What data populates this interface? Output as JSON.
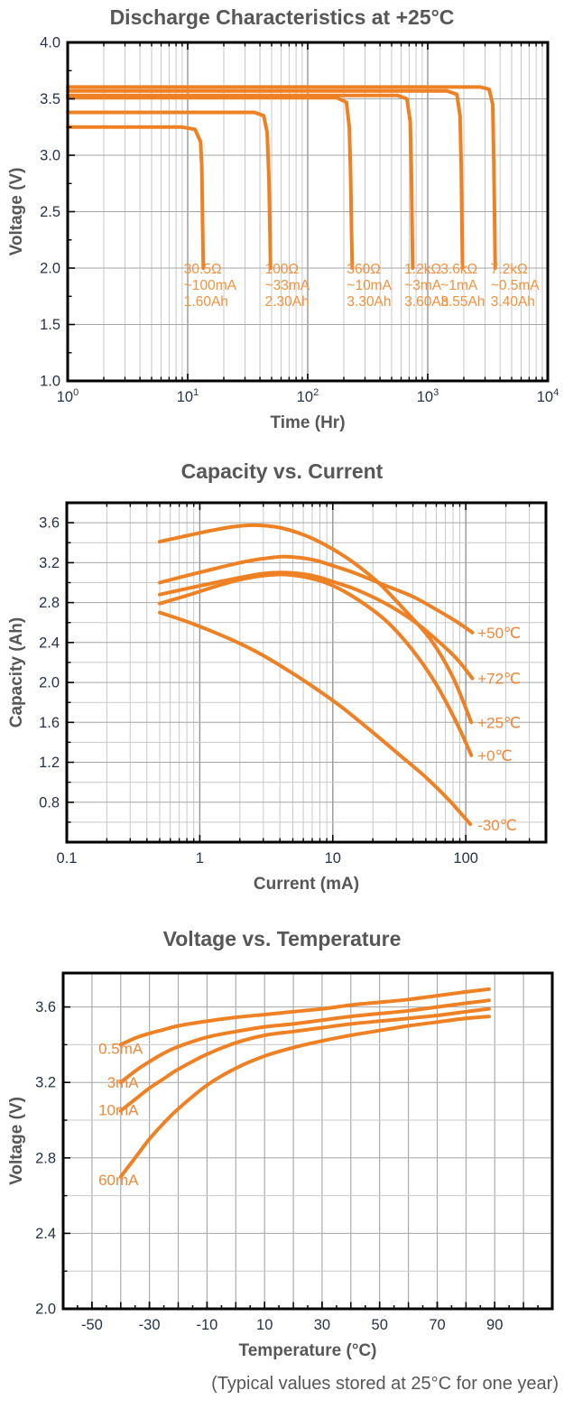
{
  "caption": "(Typical values stored at 25°C for one year)",
  "colors": {
    "curve": "#EF8125",
    "annotation": "#F2913D",
    "series_label": "#F0883A",
    "title_gray": "#575757",
    "tick": "#243447",
    "axis": "#000000",
    "grid_major": "#8f8f8f",
    "grid_mid": "#a6a6a6",
    "grid_minor": "#c9c9c9"
  },
  "chart_data": [
    {
      "type": "line",
      "title": "Discharge Characteristics at +25°C",
      "xlabel": "Time (Hr)",
      "ylabel": "Voltage (V)",
      "xscale": "log",
      "xlim": [
        1,
        10000
      ],
      "ylim": [
        1.0,
        4.0
      ],
      "smooth": false,
      "xticks": [
        {
          "v": 1,
          "exp": "0"
        },
        {
          "v": 10,
          "exp": "1"
        },
        {
          "v": 100,
          "exp": "2"
        },
        {
          "v": 1000,
          "exp": "3"
        },
        {
          "v": 10000,
          "exp": "4"
        }
      ],
      "yticks": [
        1.0,
        1.5,
        2.0,
        2.5,
        3.0,
        3.5,
        4.0
      ],
      "y_minor_step": 0.25,
      "y_grid_step": 0.5,
      "legend_position": "none",
      "grid": "on",
      "series": [
        {
          "name": "30.5Ω ~100mA 1.60Ah",
          "points": [
            [
              1,
              3.25
            ],
            [
              9,
              3.25
            ],
            [
              11.5,
              3.23
            ],
            [
              12.8,
              3.12
            ],
            [
              13.1,
              2.9
            ],
            [
              13.3,
              2.4
            ],
            [
              13.5,
              2.0
            ]
          ]
        },
        {
          "name": "100Ω ~33mA 2.30Ah",
          "points": [
            [
              1,
              3.38
            ],
            [
              36,
              3.38
            ],
            [
              43,
              3.35
            ],
            [
              46,
              3.2
            ],
            [
              47.5,
              2.8
            ],
            [
              48.5,
              2.3
            ],
            [
              49,
              2.0
            ]
          ]
        },
        {
          "name": "360Ω ~10mA 3.30Ah",
          "points": [
            [
              1,
              3.51
            ],
            [
              175,
              3.51
            ],
            [
              210,
              3.47
            ],
            [
              222,
              3.25
            ],
            [
              228,
              2.8
            ],
            [
              232,
              2.3
            ],
            [
              235,
              2.0
            ]
          ]
        },
        {
          "name": "1.2kΩ ~3mA 3.60Ah",
          "points": [
            [
              1,
              3.53
            ],
            [
              560,
              3.53
            ],
            [
              670,
              3.5
            ],
            [
              715,
              3.3
            ],
            [
              730,
              2.9
            ],
            [
              742,
              2.3
            ],
            [
              750,
              2.0
            ]
          ]
        },
        {
          "name": "3.6kΩ ~1mA 3.55Ah",
          "points": [
            [
              1,
              3.57
            ],
            [
              1450,
              3.57
            ],
            [
              1750,
              3.54
            ],
            [
              1860,
              3.35
            ],
            [
              1900,
              2.9
            ],
            [
              1930,
              2.3
            ],
            [
              1950,
              2.0
            ]
          ]
        },
        {
          "name": "7.2kΩ ~0.5mA 3.40Ah",
          "points": [
            [
              1,
              3.605
            ],
            [
              2750,
              3.605
            ],
            [
              3250,
              3.585
            ],
            [
              3480,
              3.45
            ],
            [
              3560,
              2.9
            ],
            [
              3620,
              2.3
            ],
            [
              3650,
              2.0
            ]
          ]
        }
      ],
      "annotations": [
        {
          "x": 9.3,
          "lines": [
            "30.5Ω",
            "~100mA",
            "1.60Ah"
          ]
        },
        {
          "x": 44,
          "lines": [
            "100Ω",
            "~33mA",
            "2.30Ah"
          ]
        },
        {
          "x": 212,
          "lines": [
            "360Ω",
            "~10mA",
            "3.30Ah"
          ]
        },
        {
          "x": 640,
          "lines": [
            "1.2kΩ",
            "~3mA",
            "3.60Ah"
          ]
        },
        {
          "x": 1280,
          "lines": [
            "3.6kΩ",
            "~1mA",
            "3.55Ah"
          ]
        },
        {
          "x": 3350,
          "lines": [
            "7.2kΩ",
            "~0.5mA",
            "3.40Ah"
          ]
        }
      ]
    },
    {
      "type": "line",
      "title": "Capacity vs. Current",
      "xlabel": "Current (mA)",
      "ylabel": "Capacity (Ah)",
      "xscale": "log",
      "xlim": [
        0.1,
        400
      ],
      "ylim": [
        0.4,
        3.8
      ],
      "smooth": true,
      "xticks": [
        {
          "v": 0.1,
          "label": "0.1"
        },
        {
          "v": 1,
          "label": "1"
        },
        {
          "v": 10,
          "label": "10"
        },
        {
          "v": 100,
          "label": "100"
        }
      ],
      "yticks": [
        0.8,
        1.2,
        1.6,
        2.0,
        2.4,
        2.8,
        3.2,
        3.6
      ],
      "y_minor_step": 0.2,
      "y_grid_step": 0.2,
      "legend_position": "right-inline",
      "grid": "on",
      "series": [
        {
          "name": "+50℃",
          "label": "+50℃",
          "label_at": [
            115,
            2.5
          ],
          "points": [
            [
              0.5,
              3.0
            ],
            [
              0.8,
              3.07
            ],
            [
              1.3,
              3.14
            ],
            [
              2,
              3.2
            ],
            [
              3,
              3.24
            ],
            [
              4.5,
              3.26
            ],
            [
              7,
              3.23
            ],
            [
              10,
              3.17
            ],
            [
              15,
              3.09
            ],
            [
              25,
              2.97
            ],
            [
              40,
              2.86
            ],
            [
              60,
              2.73
            ],
            [
              85,
              2.61
            ],
            [
              112,
              2.5
            ]
          ]
        },
        {
          "name": "+72℃",
          "label": "+72℃",
          "label_at": [
            115,
            2.04
          ],
          "points": [
            [
              0.5,
              2.88
            ],
            [
              0.8,
              2.94
            ],
            [
              1.3,
              3.0
            ],
            [
              2,
              3.05
            ],
            [
              3,
              3.09
            ],
            [
              4.5,
              3.1
            ],
            [
              7,
              3.07
            ],
            [
              10,
              3.01
            ],
            [
              15,
              2.93
            ],
            [
              25,
              2.79
            ],
            [
              40,
              2.62
            ],
            [
              60,
              2.43
            ],
            [
              85,
              2.24
            ],
            [
              112,
              2.04
            ]
          ]
        },
        {
          "name": "+25℃",
          "label": "+25℃",
          "label_at": [
            115,
            1.6
          ],
          "points": [
            [
              0.5,
              3.41
            ],
            [
              0.8,
              3.47
            ],
            [
              1.2,
              3.52
            ],
            [
              1.8,
              3.56
            ],
            [
              2.6,
              3.575
            ],
            [
              4,
              3.55
            ],
            [
              6,
              3.48
            ],
            [
              9,
              3.37
            ],
            [
              14,
              3.21
            ],
            [
              22,
              3.0
            ],
            [
              35,
              2.72
            ],
            [
              55,
              2.42
            ],
            [
              80,
              2.05
            ],
            [
              110,
              1.6
            ]
          ]
        },
        {
          "name": "+0℃",
          "label": "+0℃",
          "label_at": [
            115,
            1.27
          ],
          "points": [
            [
              0.5,
              2.79
            ],
            [
              0.8,
              2.87
            ],
            [
              1.3,
              2.96
            ],
            [
              2,
              3.03
            ],
            [
              3,
              3.07
            ],
            [
              4.5,
              3.08
            ],
            [
              7,
              3.04
            ],
            [
              10,
              2.97
            ],
            [
              15,
              2.84
            ],
            [
              25,
              2.62
            ],
            [
              40,
              2.32
            ],
            [
              60,
              1.98
            ],
            [
              85,
              1.6
            ],
            [
              110,
              1.27
            ]
          ]
        },
        {
          "name": "-30℃",
          "label": "-30℃",
          "label_at": [
            115,
            0.57
          ],
          "points": [
            [
              0.5,
              2.7
            ],
            [
              0.8,
              2.61
            ],
            [
              1.3,
              2.5
            ],
            [
              2,
              2.39
            ],
            [
              3,
              2.27
            ],
            [
              5,
              2.09
            ],
            [
              8,
              1.91
            ],
            [
              12,
              1.74
            ],
            [
              20,
              1.5
            ],
            [
              32,
              1.27
            ],
            [
              50,
              1.05
            ],
            [
              75,
              0.82
            ],
            [
              108,
              0.58
            ]
          ]
        }
      ],
      "annotations": []
    },
    {
      "type": "line",
      "title": "Voltage vs. Temperature",
      "xlabel": "Temperature (°C)",
      "ylabel": "Voltage (V)",
      "xscale": "linear",
      "xlim": [
        -60,
        110
      ],
      "ylim": [
        2.0,
        3.78
      ],
      "smooth": true,
      "x_grid_step": 10,
      "x_minor_step": 5,
      "xticks": [
        {
          "v": -50,
          "label": "-50"
        },
        {
          "v": -30,
          "label": "-30"
        },
        {
          "v": -10,
          "label": "-10"
        },
        {
          "v": 10,
          "label": "10"
        },
        {
          "v": 30,
          "label": "30"
        },
        {
          "v": 50,
          "label": "50"
        },
        {
          "v": 70,
          "label": "70"
        },
        {
          "v": 90,
          "label": "90"
        }
      ],
      "yticks": [
        2.0,
        2.4,
        2.8,
        3.2,
        3.6
      ],
      "y_minor_step": 0.2,
      "y_grid_step": 0.2,
      "legend_position": "left-inline",
      "grid": "on",
      "series": [
        {
          "name": "0.5mA",
          "label": "0.5mA",
          "label_at": [
            -49,
            3.38
          ],
          "label_anchor": "start",
          "points": [
            [
              -40,
              3.4
            ],
            [
              -35,
              3.435
            ],
            [
              -30,
              3.46
            ],
            [
              -25,
              3.48
            ],
            [
              -20,
              3.5
            ],
            [
              -10,
              3.525
            ],
            [
              0,
              3.545
            ],
            [
              10,
              3.56
            ],
            [
              20,
              3.575
            ],
            [
              30,
              3.59
            ],
            [
              40,
              3.61
            ],
            [
              50,
              3.625
            ],
            [
              60,
              3.64
            ],
            [
              70,
              3.66
            ],
            [
              80,
              3.68
            ],
            [
              88,
              3.695
            ]
          ]
        },
        {
          "name": "3mA",
          "label": "3mA",
          "label_at": [
            -46,
            3.2
          ],
          "label_anchor": "start",
          "points": [
            [
              -40,
              3.2
            ],
            [
              -35,
              3.26
            ],
            [
              -30,
              3.31
            ],
            [
              -25,
              3.355
            ],
            [
              -20,
              3.39
            ],
            [
              -10,
              3.44
            ],
            [
              0,
              3.47
            ],
            [
              10,
              3.495
            ],
            [
              20,
              3.51
            ],
            [
              30,
              3.53
            ],
            [
              40,
              3.55
            ],
            [
              50,
              3.565
            ],
            [
              60,
              3.58
            ],
            [
              70,
              3.6
            ],
            [
              80,
              3.62
            ],
            [
              88,
              3.635
            ]
          ]
        },
        {
          "name": "10mA",
          "label": "10mA",
          "label_at": [
            -49,
            3.055
          ],
          "label_anchor": "start",
          "points": [
            [
              -40,
              3.05
            ],
            [
              -35,
              3.11
            ],
            [
              -30,
              3.17
            ],
            [
              -25,
              3.22
            ],
            [
              -20,
              3.27
            ],
            [
              -10,
              3.35
            ],
            [
              0,
              3.41
            ],
            [
              10,
              3.45
            ],
            [
              20,
              3.47
            ],
            [
              30,
              3.49
            ],
            [
              40,
              3.51
            ],
            [
              50,
              3.525
            ],
            [
              60,
              3.54
            ],
            [
              70,
              3.555
            ],
            [
              80,
              3.575
            ],
            [
              88,
              3.59
            ]
          ]
        },
        {
          "name": "60mA",
          "label": "60mA",
          "label_at": [
            -49,
            2.685
          ],
          "label_anchor": "start",
          "points": [
            [
              -40,
              2.7
            ],
            [
              -35,
              2.8
            ],
            [
              -30,
              2.9
            ],
            [
              -25,
              2.985
            ],
            [
              -20,
              3.06
            ],
            [
              -10,
              3.185
            ],
            [
              0,
              3.275
            ],
            [
              10,
              3.34
            ],
            [
              20,
              3.385
            ],
            [
              30,
              3.42
            ],
            [
              40,
              3.45
            ],
            [
              50,
              3.475
            ],
            [
              60,
              3.5
            ],
            [
              70,
              3.52
            ],
            [
              80,
              3.54
            ],
            [
              88,
              3.55
            ]
          ]
        }
      ],
      "annotations": []
    }
  ]
}
